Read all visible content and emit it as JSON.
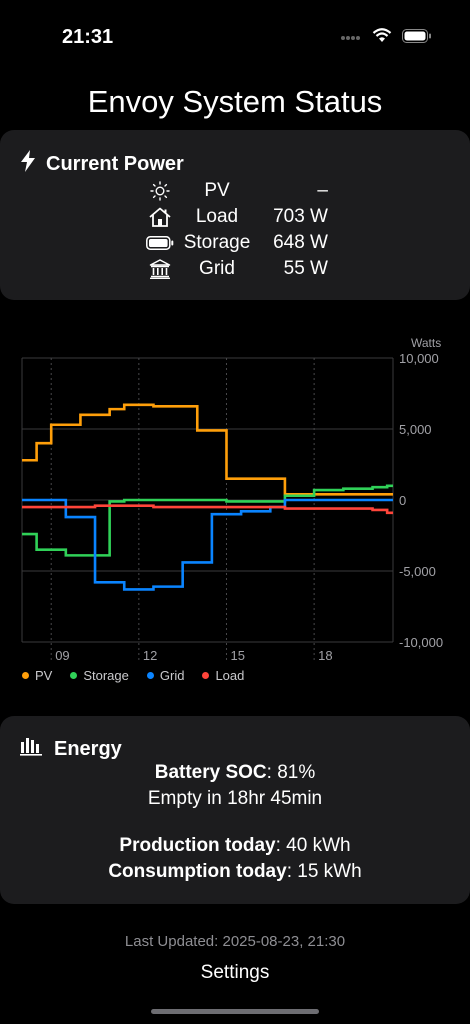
{
  "status_bar": {
    "time": "21:31"
  },
  "title": "Envoy System Status",
  "current_power": {
    "heading": "Current Power",
    "rows": [
      {
        "icon": "sun-icon",
        "label": "PV",
        "value": "–"
      },
      {
        "icon": "house-icon",
        "label": "Load",
        "value": "703 W"
      },
      {
        "icon": "battery-icon",
        "label": "Storage",
        "value": "648 W"
      },
      {
        "icon": "building-columns-icon",
        "label": "Grid",
        "value": "55 W"
      }
    ]
  },
  "chart_data": {
    "type": "line",
    "step": true,
    "ylabel": "Watts",
    "yticks": [
      "10,000",
      "5,000",
      "0",
      "-5,000",
      "-10,000"
    ],
    "ytick_values": [
      10000,
      5000,
      0,
      -5000,
      -10000
    ],
    "ylim": [
      -10000,
      10000
    ],
    "xlim": [
      8.0,
      20.7
    ],
    "xticks": [
      "09",
      "12",
      "15",
      "18"
    ],
    "xtick_values": [
      9,
      12,
      15,
      18
    ],
    "x": [
      8,
      8.5,
      9,
      9.5,
      10,
      10.5,
      11,
      11.5,
      12,
      12.5,
      13,
      13.5,
      14,
      14.5,
      15,
      15.5,
      16,
      16.5,
      17,
      17.5,
      18,
      18.5,
      19,
      19.5,
      20,
      20.5
    ],
    "series": [
      {
        "name": "PV",
        "color": "#ff9f0a",
        "values": [
          2800,
          4000,
          5300,
          5300,
          6000,
          6000,
          6400,
          6700,
          6700,
          6600,
          6600,
          6600,
          4900,
          4900,
          1500,
          1500,
          1500,
          1500,
          400,
          400,
          400,
          400,
          400,
          400,
          400,
          400
        ]
      },
      {
        "name": "Storage",
        "color": "#30d158",
        "values": [
          -2400,
          -3500,
          -3500,
          -3900,
          -3900,
          -3900,
          -100,
          0,
          0,
          0,
          0,
          0,
          0,
          0,
          -100,
          -100,
          -100,
          -100,
          300,
          300,
          700,
          700,
          800,
          800,
          900,
          1000
        ]
      },
      {
        "name": "Grid",
        "color": "#0a84ff",
        "values": [
          0,
          0,
          0,
          -1200,
          -1200,
          -5800,
          -5800,
          -6300,
          -6300,
          -6100,
          -6100,
          -4400,
          -4400,
          -1000,
          -1000,
          -800,
          -800,
          -500,
          0,
          0,
          0,
          0,
          0,
          0,
          0,
          0
        ]
      },
      {
        "name": "Load",
        "color": "#ff453a",
        "values": [
          -500,
          -500,
          -500,
          -500,
          -500,
          -400,
          -400,
          -400,
          -400,
          -500,
          -500,
          -500,
          -500,
          -500,
          -500,
          -500,
          -500,
          -500,
          -600,
          -600,
          -600,
          -600,
          -600,
          -600,
          -700,
          -900
        ]
      }
    ],
    "legend_position": "bottom-left",
    "grid": true
  },
  "energy": {
    "heading": "Energy",
    "soc_label": "Battery SOC",
    "soc_value": ": 81%",
    "empty_in": "Empty in 18hr 45min",
    "production_label": "Production today",
    "production_value": ": 40 kWh",
    "consumption_label": "Consumption today",
    "consumption_value": ": 15 kWh"
  },
  "last_updated": "Last Updated: 2025-08-23, 21:30",
  "settings_label": "Settings"
}
